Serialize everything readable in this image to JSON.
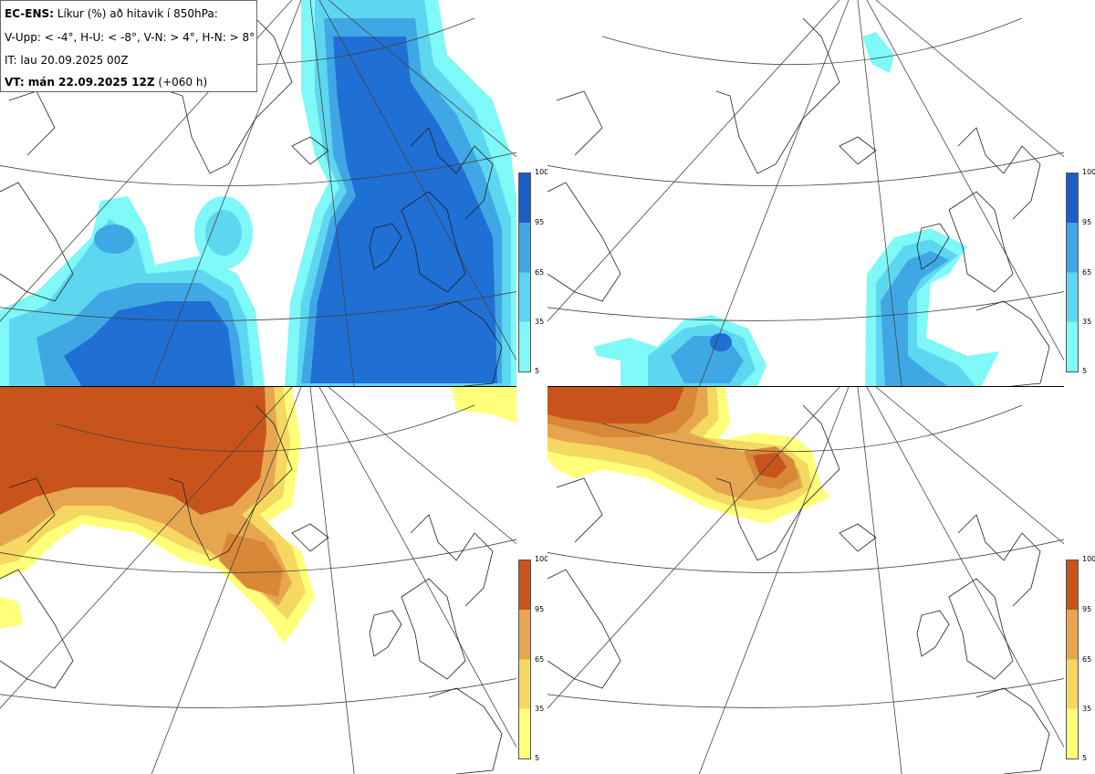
{
  "header": {
    "line1_bold": "EC-ENS:",
    "line1_rest": " Líkur (%) að hitavik í 850hPa:",
    "line2": "V-Upp: < -4°, H-U: < -8°, V-N: > 4°, H-N: > 8°",
    "line3": "IT: lau 20.09.2025 00Z",
    "line4_bold": "VT: mán 22.09.2025 12Z",
    "line4_rest": " (+060 h)"
  },
  "legend": {
    "ticks": [
      "100",
      "95",
      "65",
      "35",
      "5"
    ]
  },
  "colors": {
    "cold_scale": [
      "#7ff8f8",
      "#5dd6f0",
      "#3fa8e4",
      "#1f6fd4",
      "#1a5fc8"
    ],
    "warm_scale": [
      "#ffff7a",
      "#f5d860",
      "#e6a650",
      "#d98838",
      "#c8541c"
    ],
    "coastline": "#222222",
    "graticule": "#444444"
  },
  "panels": [
    {
      "name": "V-Upp",
      "color_scale": "cold"
    },
    {
      "name": "H-U",
      "color_scale": "cold"
    },
    {
      "name": "V-N",
      "color_scale": "warm"
    },
    {
      "name": "H-N",
      "color_scale": "warm"
    }
  ]
}
